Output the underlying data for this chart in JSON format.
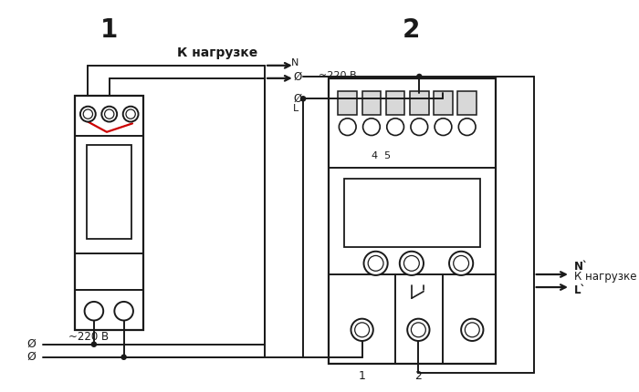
{
  "bg_color": "#ffffff",
  "line_color": "#1a1a1a",
  "red_color": "#cc0000",
  "label1": "1",
  "label2": "2",
  "k_nagruzke": "К нагрузке",
  "v220": "~220 В",
  "phi": "Ø",
  "N_label": "N",
  "L_label": "L",
  "N_prime": "N`",
  "L_prime": "L`",
  "label_45": "4  5",
  "label_b1": "1",
  "label_b2": "2",
  "figsize": [
    7.0,
    4.3
  ],
  "dpi": 100
}
